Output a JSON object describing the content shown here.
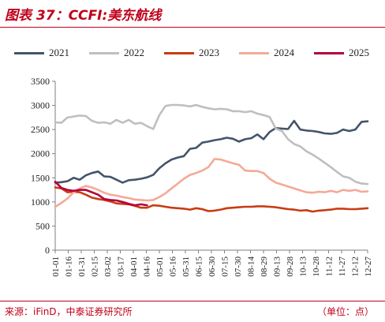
{
  "title": "图表 37：CCFI:美东航线",
  "footer": {
    "source": "来源：iFinD，中泰证券研究所",
    "unit": "（单位：点）"
  },
  "chart_data": {
    "type": "line",
    "ylim": [
      0,
      3500
    ],
    "yticks": [
      "0",
      "500",
      "1000",
      "1500",
      "2000",
      "2500",
      "3000",
      "3500"
    ],
    "categories": [
      "01-01",
      "01-16",
      "01-31",
      "02-15",
      "03-02",
      "03-17",
      "04-01",
      "04-16",
      "05-01",
      "05-16",
      "05-31",
      "06-15",
      "06-30",
      "07-15",
      "07-30",
      "08-14",
      "08-29",
      "09-13",
      "09-28",
      "10-13",
      "10-28",
      "11-12",
      "11-27",
      "12-12",
      "12-27"
    ],
    "x_range": [
      1,
      52
    ],
    "series": [
      {
        "name": "2021",
        "color": "#44546a",
        "x": [
          1,
          2,
          3,
          4,
          5,
          6,
          7,
          8,
          9,
          10,
          11,
          12,
          13,
          14,
          15,
          16,
          17,
          18,
          19,
          20,
          21,
          22,
          23,
          24,
          25,
          26,
          27,
          28,
          29,
          30,
          31,
          32,
          33,
          34,
          35,
          36,
          37,
          38,
          39,
          40,
          41,
          42,
          43,
          44,
          45,
          46,
          47,
          48,
          49,
          50,
          51,
          52
        ],
        "values": [
          1400,
          1410,
          1430,
          1500,
          1460,
          1550,
          1600,
          1630,
          1530,
          1520,
          1460,
          1400,
          1450,
          1460,
          1480,
          1510,
          1560,
          1700,
          1800,
          1880,
          1920,
          1950,
          2100,
          2120,
          2230,
          2250,
          2280,
          2300,
          2330,
          2310,
          2250,
          2300,
          2320,
          2400,
          2300,
          2450,
          2530,
          2520,
          2510,
          2680,
          2500,
          2480,
          2470,
          2450,
          2420,
          2410,
          2430,
          2500,
          2470,
          2500,
          2660,
          2670
        ]
      },
      {
        "name": "2022",
        "color": "#bfbfbf",
        "x": [
          1,
          2,
          3,
          4,
          5,
          6,
          7,
          8,
          9,
          10,
          11,
          12,
          13,
          14,
          15,
          16,
          17,
          18,
          19,
          20,
          21,
          22,
          23,
          24,
          25,
          26,
          27,
          28,
          29,
          30,
          31,
          32,
          33,
          34,
          35,
          36,
          37,
          38,
          39,
          40,
          41,
          42,
          43,
          44,
          45,
          46,
          47,
          48,
          49,
          50,
          51,
          52
        ],
        "values": [
          2650,
          2640,
          2750,
          2770,
          2790,
          2780,
          2680,
          2640,
          2650,
          2620,
          2700,
          2640,
          2700,
          2620,
          2640,
          2570,
          2510,
          2800,
          2990,
          3010,
          3010,
          3000,
          2980,
          3010,
          2970,
          2940,
          2920,
          2930,
          2920,
          2880,
          2880,
          2860,
          2880,
          2830,
          2800,
          2760,
          2520,
          2470,
          2300,
          2200,
          2150,
          2050,
          1980,
          1900,
          1810,
          1720,
          1620,
          1530,
          1500,
          1420,
          1380,
          1370
        ]
      },
      {
        "name": "2023",
        "color": "#c83c14",
        "x": [
          1,
          2,
          3,
          4,
          5,
          6,
          7,
          8,
          9,
          10,
          11,
          12,
          13,
          14,
          15,
          16,
          17,
          18,
          19,
          20,
          21,
          22,
          23,
          24,
          25,
          26,
          27,
          28,
          29,
          30,
          31,
          32,
          33,
          34,
          35,
          36,
          37,
          38,
          39,
          40,
          41,
          42,
          43,
          44,
          45,
          46,
          47,
          48,
          49,
          50,
          51,
          52
        ],
        "values": [
          1300,
          1280,
          1200,
          1210,
          1200,
          1150,
          1090,
          1060,
          1040,
          1010,
          970,
          960,
          950,
          920,
          880,
          880,
          930,
          920,
          900,
          880,
          870,
          860,
          840,
          870,
          850,
          810,
          820,
          840,
          870,
          880,
          890,
          900,
          900,
          910,
          910,
          900,
          890,
          870,
          850,
          840,
          820,
          830,
          800,
          820,
          830,
          840,
          860,
          860,
          850,
          850,
          860,
          870
        ]
      },
      {
        "name": "2024",
        "color": "#f4aa96",
        "x": [
          1,
          2,
          3,
          4,
          5,
          6,
          7,
          8,
          9,
          10,
          11,
          12,
          13,
          14,
          15,
          16,
          17,
          18,
          19,
          20,
          21,
          22,
          23,
          24,
          25,
          26,
          27,
          28,
          29,
          30,
          31,
          32,
          33,
          34,
          35,
          36,
          37,
          38,
          39,
          40,
          41,
          42,
          43,
          44,
          45,
          46,
          47,
          48,
          49,
          50,
          51,
          52
        ],
        "values": [
          900,
          980,
          1070,
          1200,
          1280,
          1330,
          1300,
          1250,
          1190,
          1150,
          1130,
          1100,
          1080,
          1050,
          1040,
          1030,
          1040,
          1100,
          1180,
          1280,
          1380,
          1480,
          1560,
          1600,
          1650,
          1720,
          1890,
          1880,
          1840,
          1800,
          1770,
          1650,
          1640,
          1640,
          1600,
          1480,
          1400,
          1360,
          1320,
          1280,
          1240,
          1200,
          1190,
          1210,
          1200,
          1230,
          1200,
          1250,
          1230,
          1250,
          1210,
          1220
        ]
      },
      {
        "name": "2025",
        "color": "#b4003c",
        "x": [
          1,
          2,
          3,
          4,
          5,
          6,
          7,
          8,
          9,
          10,
          11,
          12,
          13,
          14,
          15,
          16
        ],
        "values": [
          1420,
          1290,
          1250,
          1230,
          1250,
          1250,
          1200,
          1150,
          1060,
          1040,
          1030,
          1000,
          960,
          930,
          950,
          930
        ]
      }
    ]
  }
}
